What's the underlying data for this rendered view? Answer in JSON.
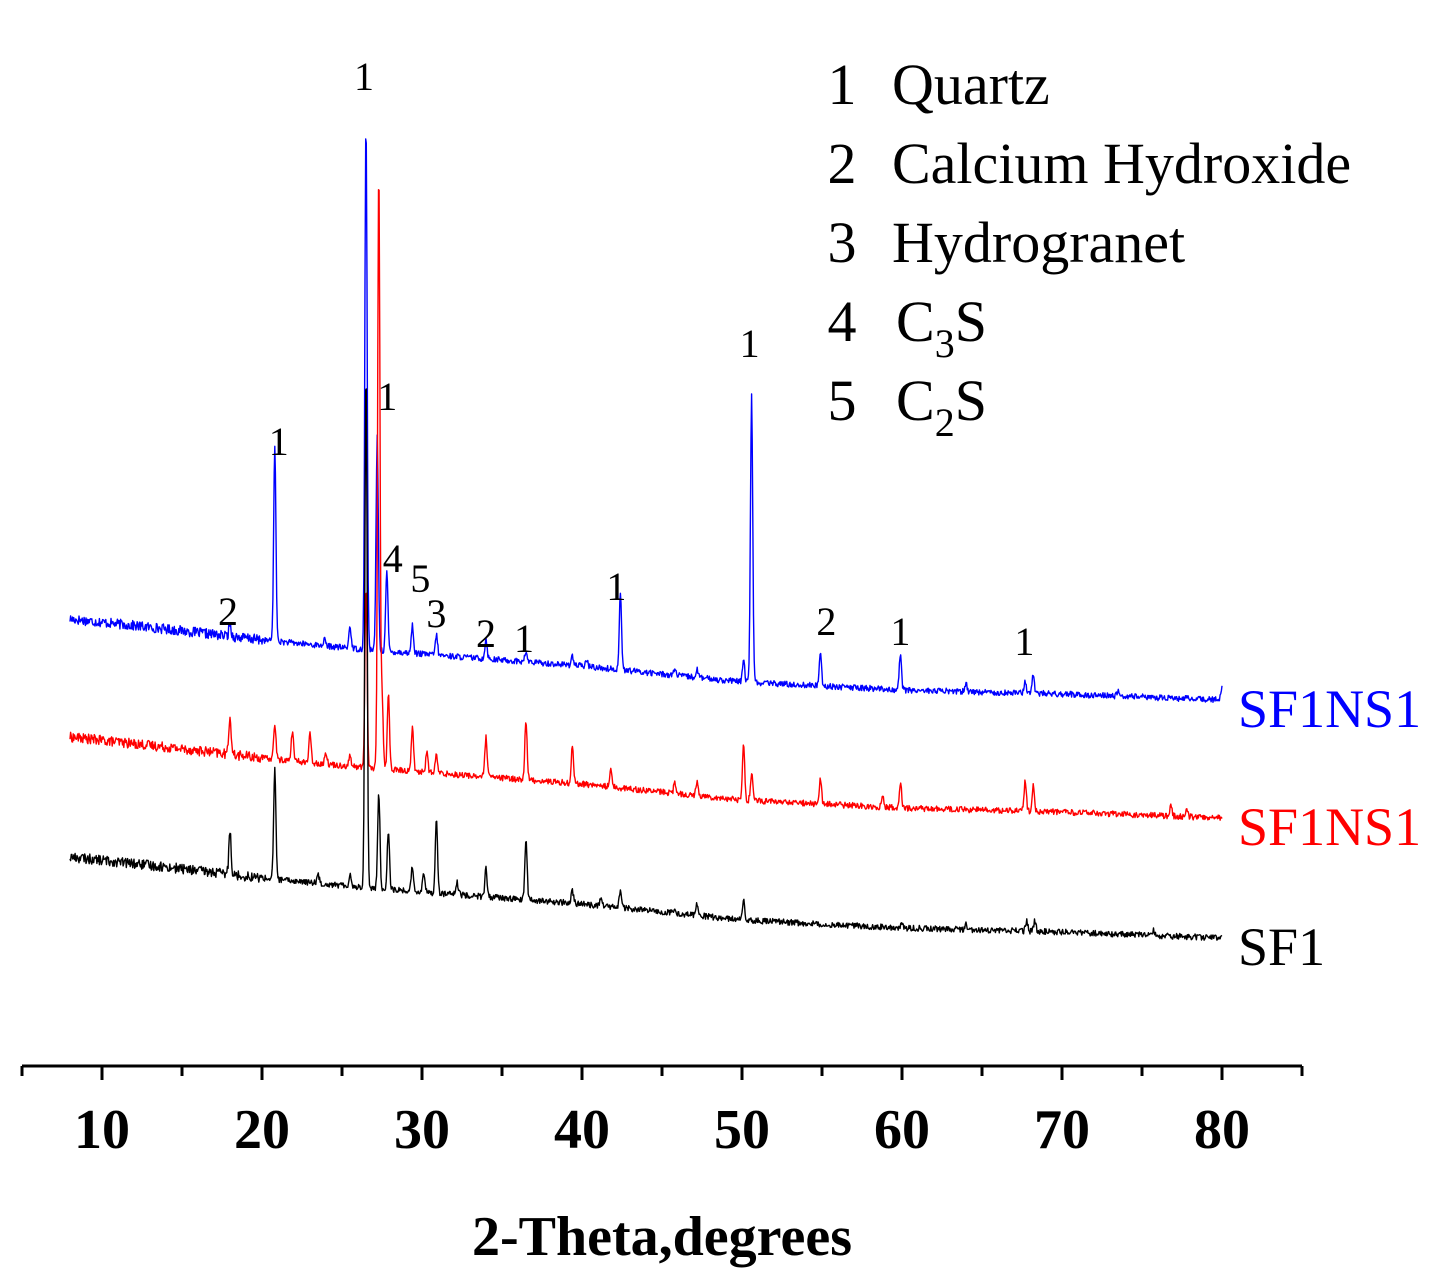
{
  "chart_data": {
    "type": "line",
    "title": "",
    "xlabel": "2-Theta,degrees",
    "ylabel": "",
    "xlim": [
      5,
      85
    ],
    "x_ticks": [
      10,
      20,
      30,
      40,
      50,
      60,
      70,
      80
    ],
    "x_tick_labels": [
      "10",
      "20",
      "30",
      "40",
      "50",
      "60",
      "70",
      "80"
    ],
    "grid": false,
    "series": [
      {
        "name": "SF1NS1",
        "label": "SF1NS1",
        "color": "#0000ff",
        "baseline": [
          [
            8,
            85
          ],
          [
            14,
            75
          ],
          [
            20,
            64
          ],
          [
            26,
            55
          ],
          [
            30,
            50
          ],
          [
            40,
            38
          ],
          [
            50,
            22
          ],
          [
            60,
            14
          ],
          [
            70,
            10
          ],
          [
            80,
            4
          ]
        ],
        "peaks": [
          {
            "x": 18.0,
            "h": 12
          },
          {
            "x": 20.8,
            "h": 195
          },
          {
            "x": 23.9,
            "h": 6
          },
          {
            "x": 25.5,
            "h": 22
          },
          {
            "x": 26.5,
            "h": 530
          },
          {
            "x": 27.2,
            "h": 215
          },
          {
            "x": 27.8,
            "h": 80
          },
          {
            "x": 29.4,
            "h": 28
          },
          {
            "x": 30.9,
            "h": 20
          },
          {
            "x": 34.0,
            "h": 20
          },
          {
            "x": 36.5,
            "h": 10
          },
          {
            "x": 39.4,
            "h": 10
          },
          {
            "x": 40.3,
            "h": 6
          },
          {
            "x": 42.4,
            "h": 78
          },
          {
            "x": 45.8,
            "h": 6
          },
          {
            "x": 47.2,
            "h": 8
          },
          {
            "x": 50.1,
            "h": 22
          },
          {
            "x": 50.6,
            "h": 290
          },
          {
            "x": 54.9,
            "h": 35
          },
          {
            "x": 59.9,
            "h": 36
          },
          {
            "x": 64.0,
            "h": 8
          },
          {
            "x": 67.7,
            "h": 12
          },
          {
            "x": 68.2,
            "h": 20
          },
          {
            "x": 73.5,
            "h": 5
          },
          {
            "x": 80.0,
            "h": 12
          }
        ]
      },
      {
        "name": "SF1NS1 (red)",
        "label": "SF1NS1",
        "color": "#ff0000",
        "baseline": [
          [
            8,
            85
          ],
          [
            14,
            75
          ],
          [
            20,
            64
          ],
          [
            26,
            55
          ],
          [
            30,
            50
          ],
          [
            40,
            38
          ],
          [
            50,
            22
          ],
          [
            60,
            14
          ],
          [
            70,
            10
          ],
          [
            80,
            4
          ]
        ],
        "peaks": [
          {
            "x": 18.0,
            "h": 40
          },
          {
            "x": 20.8,
            "h": 36
          },
          {
            "x": 21.9,
            "h": 30
          },
          {
            "x": 23.0,
            "h": 28
          },
          {
            "x": 24.0,
            "h": 12
          },
          {
            "x": 25.5,
            "h": 10
          },
          {
            "x": 26.5,
            "h": 180
          },
          {
            "x": 27.3,
            "h": 600
          },
          {
            "x": 27.5,
            "h": 75
          },
          {
            "x": 27.9,
            "h": 75
          },
          {
            "x": 29.4,
            "h": 45
          },
          {
            "x": 30.3,
            "h": 20
          },
          {
            "x": 30.9,
            "h": 18
          },
          {
            "x": 34.0,
            "h": 40
          },
          {
            "x": 36.5,
            "h": 60
          },
          {
            "x": 39.4,
            "h": 38
          },
          {
            "x": 41.8,
            "h": 20
          },
          {
            "x": 45.8,
            "h": 10
          },
          {
            "x": 47.2,
            "h": 15
          },
          {
            "x": 50.1,
            "h": 55
          },
          {
            "x": 50.6,
            "h": 28
          },
          {
            "x": 54.9,
            "h": 25
          },
          {
            "x": 58.8,
            "h": 10
          },
          {
            "x": 59.9,
            "h": 25
          },
          {
            "x": 67.7,
            "h": 30
          },
          {
            "x": 68.2,
            "h": 25
          },
          {
            "x": 76.8,
            "h": 10
          },
          {
            "x": 77.8,
            "h": 8
          }
        ]
      },
      {
        "name": "SF1",
        "label": "SF1",
        "color": "#000000",
        "baseline": [
          [
            8,
            85
          ],
          [
            14,
            75
          ],
          [
            20,
            64
          ],
          [
            26,
            55
          ],
          [
            30,
            50
          ],
          [
            40,
            38
          ],
          [
            50,
            22
          ],
          [
            60,
            14
          ],
          [
            70,
            10
          ],
          [
            80,
            4
          ]
        ],
        "peaks": [
          {
            "x": 18.0,
            "h": 45
          },
          {
            "x": 20.8,
            "h": 110
          },
          {
            "x": 23.5,
            "h": 10
          },
          {
            "x": 25.5,
            "h": 12
          },
          {
            "x": 26.5,
            "h": 520
          },
          {
            "x": 27.3,
            "h": 95
          },
          {
            "x": 27.9,
            "h": 60
          },
          {
            "x": 29.4,
            "h": 25
          },
          {
            "x": 30.1,
            "h": 20
          },
          {
            "x": 30.9,
            "h": 75
          },
          {
            "x": 32.2,
            "h": 12
          },
          {
            "x": 34.0,
            "h": 28
          },
          {
            "x": 36.5,
            "h": 60
          },
          {
            "x": 39.4,
            "h": 12
          },
          {
            "x": 41.2,
            "h": 8
          },
          {
            "x": 42.4,
            "h": 18
          },
          {
            "x": 45.8,
            "h": 6
          },
          {
            "x": 47.2,
            "h": 12
          },
          {
            "x": 50.1,
            "h": 22
          },
          {
            "x": 60.0,
            "h": 6
          },
          {
            "x": 64.0,
            "h": 5
          },
          {
            "x": 67.8,
            "h": 10
          },
          {
            "x": 68.3,
            "h": 10
          },
          {
            "x": 75.7,
            "h": 6
          }
        ]
      }
    ],
    "peak_annotations": [
      {
        "x": 26.5,
        "label": "1"
      },
      {
        "x": 20.8,
        "label": "1"
      },
      {
        "x": 27.2,
        "label": "1"
      },
      {
        "x": 18.0,
        "label": "2"
      },
      {
        "x": 27.8,
        "label": "4"
      },
      {
        "x": 29.4,
        "label": "5"
      },
      {
        "x": 30.9,
        "label": "3"
      },
      {
        "x": 34.0,
        "label": "2"
      },
      {
        "x": 36.5,
        "label": "1"
      },
      {
        "x": 42.4,
        "label": "1"
      },
      {
        "x": 50.6,
        "label": "1"
      },
      {
        "x": 54.9,
        "label": "2"
      },
      {
        "x": 59.9,
        "label": "1"
      },
      {
        "x": 67.9,
        "label": "1"
      }
    ],
    "legend": [
      {
        "number": "1",
        "name": "Quartz"
      },
      {
        "number": "2",
        "name": "Calcium Hydroxide"
      },
      {
        "number": "3",
        "name": "Hydrogranet"
      },
      {
        "number": "4",
        "name": "C",
        "subscript": "3",
        "suffix": "S"
      },
      {
        "number": "5",
        "name": "C",
        "subscript": "2",
        "suffix": "S"
      }
    ],
    "legend_position": "top-right"
  }
}
